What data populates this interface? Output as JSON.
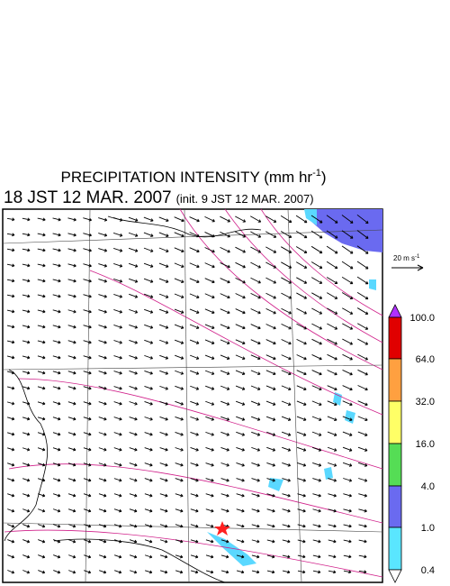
{
  "title": {
    "text": "PRECIPITATION INTENSITY (mm hr",
    "superscript": "-1",
    "close": ")"
  },
  "subtitle": {
    "time": "18 JST 12 MAR. 2007",
    "init": "(init. 9 JST 12 MAR. 2007)"
  },
  "vector_legend": {
    "text": "20 m s",
    "superscript": "-1"
  },
  "colorbar": {
    "labels": [
      "100.0",
      "64.0",
      "32.0",
      "16.0",
      "4.0",
      "1.0",
      "0.4"
    ]
  }
}
